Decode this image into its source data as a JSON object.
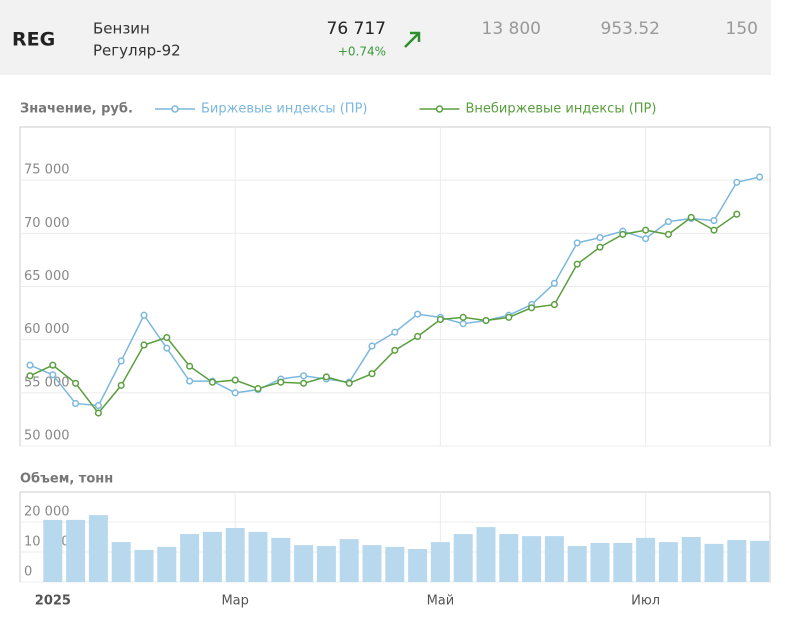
{
  "header": {
    "ticker": "REG",
    "name": "Бензин",
    "grade": "Регуляр-92",
    "price": "76 717",
    "change": "+0.74%",
    "col1": "13 800",
    "col2": "953.52",
    "col3": "150"
  },
  "chart_data": [
    {
      "type": "line",
      "title": "Значение, руб.",
      "series": [
        {
          "name": "Биржевые индексы (ПР)",
          "color": "#7bb8dd",
          "values": [
            57600,
            56700,
            54000,
            53800,
            58000,
            62300,
            59200,
            56100,
            56100,
            55000,
            55300,
            56300,
            56600,
            56300,
            56000,
            59400,
            60700,
            62400,
            62100,
            61500,
            61800,
            62300,
            63300,
            65300,
            69100,
            69600,
            70200,
            69500,
            71100,
            71400,
            71200,
            74800,
            75300
          ]
        },
        {
          "name": "Внебиржевые индексы (ПР)",
          "color": "#5a9e3e",
          "values": [
            56600,
            57600,
            55900,
            53100,
            55700,
            59500,
            60200,
            57500,
            56000,
            56200,
            55400,
            56000,
            55900,
            56500,
            55900,
            56800,
            59000,
            60300,
            61900,
            62100,
            61800,
            62100,
            63000,
            63300,
            67100,
            68700,
            69900,
            70300,
            69900,
            71500,
            70300,
            71800,
            null
          ]
        }
      ],
      "ylim": [
        50000,
        80000
      ],
      "yticks": [
        {
          "value": 50000,
          "label": "50 000"
        },
        {
          "value": 55000,
          "label": "55 000"
        },
        {
          "value": 60000,
          "label": "60 000"
        },
        {
          "value": 65000,
          "label": "65 000"
        },
        {
          "value": 70000,
          "label": "70 000"
        },
        {
          "value": 75000,
          "label": "75 000"
        }
      ],
      "grid": true
    },
    {
      "type": "bar",
      "title": "Объем, тонн",
      "color": "#b8d8ee",
      "categories": [
        null,
        "2025",
        null,
        null,
        null,
        null,
        null,
        null,
        null,
        "Мар",
        null,
        null,
        null,
        null,
        null,
        null,
        null,
        null,
        "Май",
        null,
        null,
        null,
        null,
        null,
        null,
        null,
        null,
        "Июл",
        null,
        null,
        null,
        null,
        null
      ],
      "values": [
        null,
        20700,
        20700,
        22300,
        13300,
        10700,
        11700,
        16000,
        16700,
        18000,
        16700,
        14700,
        12300,
        12000,
        14300,
        12300,
        11700,
        11000,
        13300,
        16000,
        18300,
        16000,
        15300,
        15300,
        12000,
        13000,
        13000,
        14700,
        13300,
        15000,
        12700,
        14000,
        13700
      ],
      "ylim": [
        0,
        30000
      ],
      "yticks": [
        0,
        {
          "value": 10000,
          "label": "10 000"
        },
        {
          "value": 20000,
          "label": "20 000"
        }
      ],
      "grid": true
    }
  ]
}
